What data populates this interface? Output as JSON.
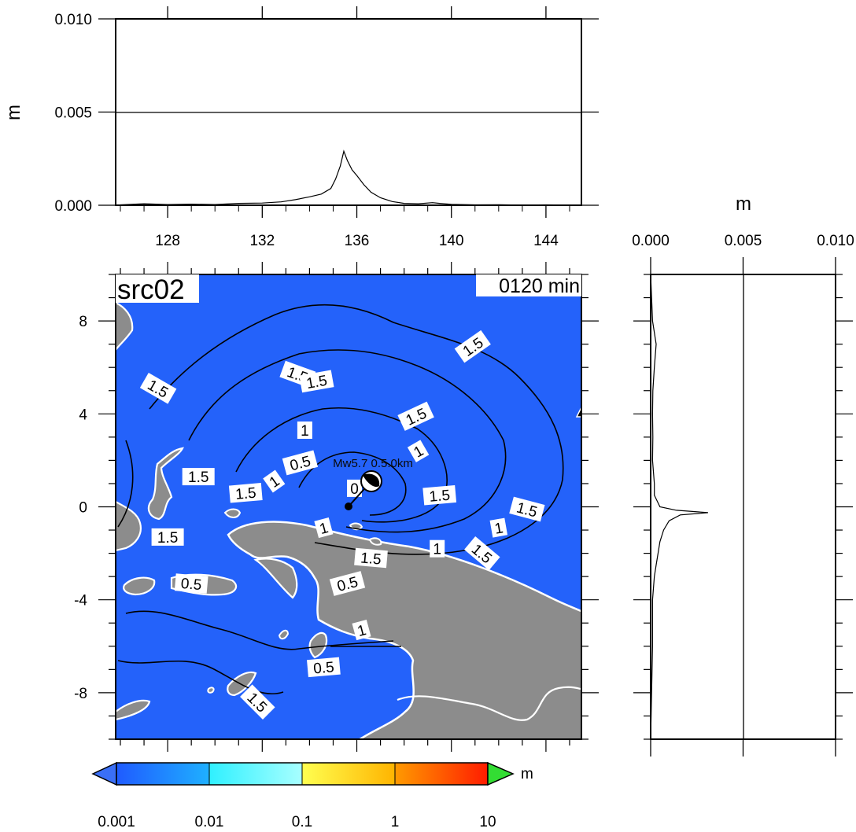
{
  "chart_data": [
    {
      "panel": "top-profile",
      "type": "line",
      "ylabel": "m",
      "xlim": [
        125.8,
        145.5
      ],
      "ylim": [
        0.0,
        0.01
      ],
      "xticks": [
        "128",
        "132",
        "136",
        "140",
        "144"
      ],
      "yticks": [
        "0.000",
        "0.005",
        "0.010"
      ],
      "x": [
        126.0,
        127.0,
        128.0,
        129.0,
        130.0,
        131.0,
        132.0,
        132.8,
        133.4,
        134.0,
        134.5,
        134.9,
        135.1,
        135.3,
        135.45,
        135.6,
        135.8,
        136.0,
        136.3,
        136.6,
        137.0,
        137.5,
        138.0,
        138.6,
        139.2,
        139.5,
        140.0,
        141.0,
        142.0,
        143.0,
        144.0,
        145.0
      ],
      "y": [
        2e-05,
        8e-05,
        4e-05,
        6e-05,
        4e-05,
        0.0001,
        0.00012,
        0.00018,
        0.0003,
        0.00045,
        0.0006,
        0.0009,
        0.0014,
        0.0021,
        0.0029,
        0.0024,
        0.0019,
        0.0016,
        0.0011,
        0.0007,
        0.0004,
        0.0002,
        0.0001,
        8e-05,
        0.00014,
        0.0001,
        5e-05,
        2e-05,
        3e-05,
        1e-05,
        2e-05,
        1e-05
      ]
    },
    {
      "panel": "right-profile",
      "type": "line",
      "xlabel": "m",
      "xlim": [
        0.0,
        0.01
      ],
      "ylim": [
        -10.0,
        10.0
      ],
      "xticks": [
        "0.000",
        "0.005",
        "0.010"
      ],
      "lat": [
        -10.0,
        -8.0,
        -6.0,
        -4.0,
        -3.0,
        -2.5,
        -2.0,
        -1.5,
        -1.0,
        -0.6,
        -0.35,
        -0.25,
        -0.15,
        0.0,
        0.5,
        1.0,
        2.0,
        3.0,
        4.0,
        5.0,
        6.0,
        7.0,
        7.5,
        8.0,
        9.0,
        10.0
      ],
      "amp": [
        0.0,
        5e-05,
        0.0001,
        0.0001,
        0.0002,
        0.0003,
        0.0004,
        0.0005,
        0.0007,
        0.001,
        0.0016,
        0.0031,
        0.0014,
        0.0005,
        0.0002,
        0.0002,
        0.0001,
        0.00012,
        0.0001,
        0.00012,
        0.0002,
        0.0003,
        0.0002,
        0.0001,
        5e-05,
        0.0
      ]
    },
    {
      "panel": "map",
      "type": "heatmap",
      "title": "src02",
      "time_label": "0120 min",
      "source_label": "Mw5.7 0.5.0km",
      "xlim": [
        125.8,
        145.5
      ],
      "ylim": [
        -10.0,
        10.0
      ],
      "yticks": [
        "8",
        "4",
        "0",
        "-4",
        "-8"
      ],
      "contour_labels": [
        {
          "text": "1.5",
          "lon": 127.6,
          "lat": 5.1,
          "angle": 30
        },
        {
          "text": "1.5",
          "lon": 133.5,
          "lat": 5.7,
          "angle": 20
        },
        {
          "text": "1.5",
          "lon": 134.3,
          "lat": 5.4,
          "angle": -10
        },
        {
          "text": "1.5",
          "lon": 140.9,
          "lat": 6.9,
          "angle": -35
        },
        {
          "text": "1.5",
          "lon": 138.5,
          "lat": 3.9,
          "angle": -25
        },
        {
          "text": "1",
          "lon": 133.8,
          "lat": 3.3,
          "angle": 0
        },
        {
          "text": "1",
          "lon": 138.6,
          "lat": 2.4,
          "angle": -30
        },
        {
          "text": "0.5",
          "lon": 133.6,
          "lat": 1.9,
          "angle": -15
        },
        {
          "text": "1.5",
          "lon": 129.3,
          "lat": 1.3,
          "angle": 0
        },
        {
          "text": "1.5",
          "lon": 131.3,
          "lat": 0.6,
          "angle": -5
        },
        {
          "text": "1",
          "lon": 132.5,
          "lat": 1.1,
          "angle": -35
        },
        {
          "text": "0",
          "lon": 135.9,
          "lat": 0.8,
          "angle": 0
        },
        {
          "text": "1.5",
          "lon": 139.5,
          "lat": 0.5,
          "angle": -5
        },
        {
          "text": "1.5",
          "lon": 143.2,
          "lat": -0.1,
          "angle": 15
        },
        {
          "text": "1",
          "lon": 142.0,
          "lat": -0.9,
          "angle": -10
        },
        {
          "text": "1",
          "lon": 134.6,
          "lat": -0.9,
          "angle": -15
        },
        {
          "text": "1.5",
          "lon": 128.0,
          "lat": -1.3,
          "angle": 0
        },
        {
          "text": "1",
          "lon": 139.4,
          "lat": -1.8,
          "angle": 0
        },
        {
          "text": "1.5",
          "lon": 141.3,
          "lat": -2.0,
          "angle": 40
        },
        {
          "text": "1.5",
          "lon": 136.6,
          "lat": -2.2,
          "angle": 5
        },
        {
          "text": "0.5",
          "lon": 129.0,
          "lat": -3.3,
          "angle": 5
        },
        {
          "text": "0.5",
          "lon": 135.6,
          "lat": -3.3,
          "angle": -15
        },
        {
          "text": "1",
          "lon": 136.2,
          "lat": -5.3,
          "angle": -15
        },
        {
          "text": "0.5",
          "lon": 134.6,
          "lat": -6.9,
          "angle": -5
        },
        {
          "text": "1.5",
          "lon": 131.8,
          "lat": -8.4,
          "angle": 45
        }
      ]
    },
    {
      "panel": "colorbar",
      "type": "colorbar",
      "scale": "log",
      "unit": "m",
      "ticks": [
        "0.001",
        "0.01",
        "0.1",
        "1",
        "10"
      ],
      "colors": {
        "under": "#3a6ff7",
        "over": "#33dd33",
        "bin1": [
          "#1f5bff",
          "#1fb0ff"
        ],
        "bin2": [
          "#2ff0ff",
          "#a8ffff"
        ],
        "bin3": [
          "#ffff50",
          "#ffb400"
        ],
        "bin4": [
          "#ff9a00",
          "#ff1c00"
        ],
        "map_ocean": "#2462fa",
        "map_land": "#8c8c8c"
      }
    }
  ]
}
